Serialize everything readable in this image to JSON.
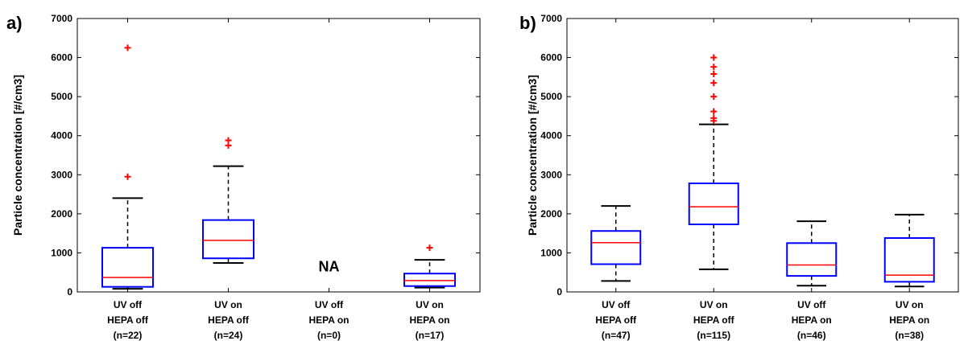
{
  "chart_data": [
    {
      "type": "box",
      "panel_label": "a)",
      "ylabel": "Particle concentration [#/cm3]",
      "ylim": [
        0,
        7000
      ],
      "yticks": [
        "0",
        "1000",
        "2000",
        "3000",
        "4000",
        "5000",
        "6000",
        "7000"
      ],
      "categories": [
        {
          "lines": [
            "UV off",
            "HEPA off",
            "(n=22)"
          ]
        },
        {
          "lines": [
            "UV on",
            "HEPA off",
            "(n=24)"
          ]
        },
        {
          "lines": [
            "UV off",
            "HEPA on",
            "(n=0)"
          ]
        },
        {
          "lines": [
            "UV on",
            "HEPA on",
            "(n=17)"
          ]
        }
      ],
      "boxes": [
        {
          "whisker_low": 80,
          "q1": 130,
          "median": 370,
          "q3": 1130,
          "whisker_high": 2400,
          "outliers": [
            2950,
            6250
          ]
        },
        {
          "whisker_low": 740,
          "q1": 860,
          "median": 1320,
          "q3": 1840,
          "whisker_high": 3220,
          "outliers": [
            3750,
            3880
          ]
        },
        null,
        {
          "whisker_low": 110,
          "q1": 150,
          "median": 290,
          "q3": 470,
          "whisker_high": 820,
          "outliers": [
            1130
          ]
        }
      ],
      "annotations": [
        {
          "category_index": 2,
          "text": "NA",
          "y": 650
        }
      ],
      "colors": {
        "box": "#0000ff",
        "median": "#ff0000",
        "whisker": "#000000",
        "outlier": "#ff0000"
      }
    },
    {
      "type": "box",
      "panel_label": "b)",
      "ylabel": "Particle concentration [#/cm3]",
      "ylim": [
        0,
        7000
      ],
      "yticks": [
        "0",
        "1000",
        "2000",
        "3000",
        "4000",
        "5000",
        "6000",
        "7000"
      ],
      "categories": [
        {
          "lines": [
            "UV off",
            "HEPA off",
            "(n=47)"
          ]
        },
        {
          "lines": [
            "UV on",
            "HEPA off",
            "(n=115)"
          ]
        },
        {
          "lines": [
            "UV off",
            "HEPA on",
            "(n=46)"
          ]
        },
        {
          "lines": [
            "UV on",
            "HEPA on",
            "(n=38)"
          ]
        }
      ],
      "boxes": [
        {
          "whisker_low": 280,
          "q1": 710,
          "median": 1260,
          "q3": 1560,
          "whisker_high": 2200,
          "outliers": []
        },
        {
          "whisker_low": 580,
          "q1": 1730,
          "median": 2180,
          "q3": 2780,
          "whisker_high": 4290,
          "outliers": [
            4380,
            4450,
            4620,
            5000,
            5350,
            5580,
            5760,
            6000
          ]
        },
        {
          "whisker_low": 160,
          "q1": 410,
          "median": 690,
          "q3": 1250,
          "whisker_high": 1810,
          "outliers": []
        },
        {
          "whisker_low": 140,
          "q1": 260,
          "median": 430,
          "q3": 1380,
          "whisker_high": 1980,
          "outliers": []
        }
      ],
      "annotations": [],
      "colors": {
        "box": "#0000ff",
        "median": "#ff0000",
        "whisker": "#000000",
        "outlier": "#ff0000"
      }
    }
  ]
}
